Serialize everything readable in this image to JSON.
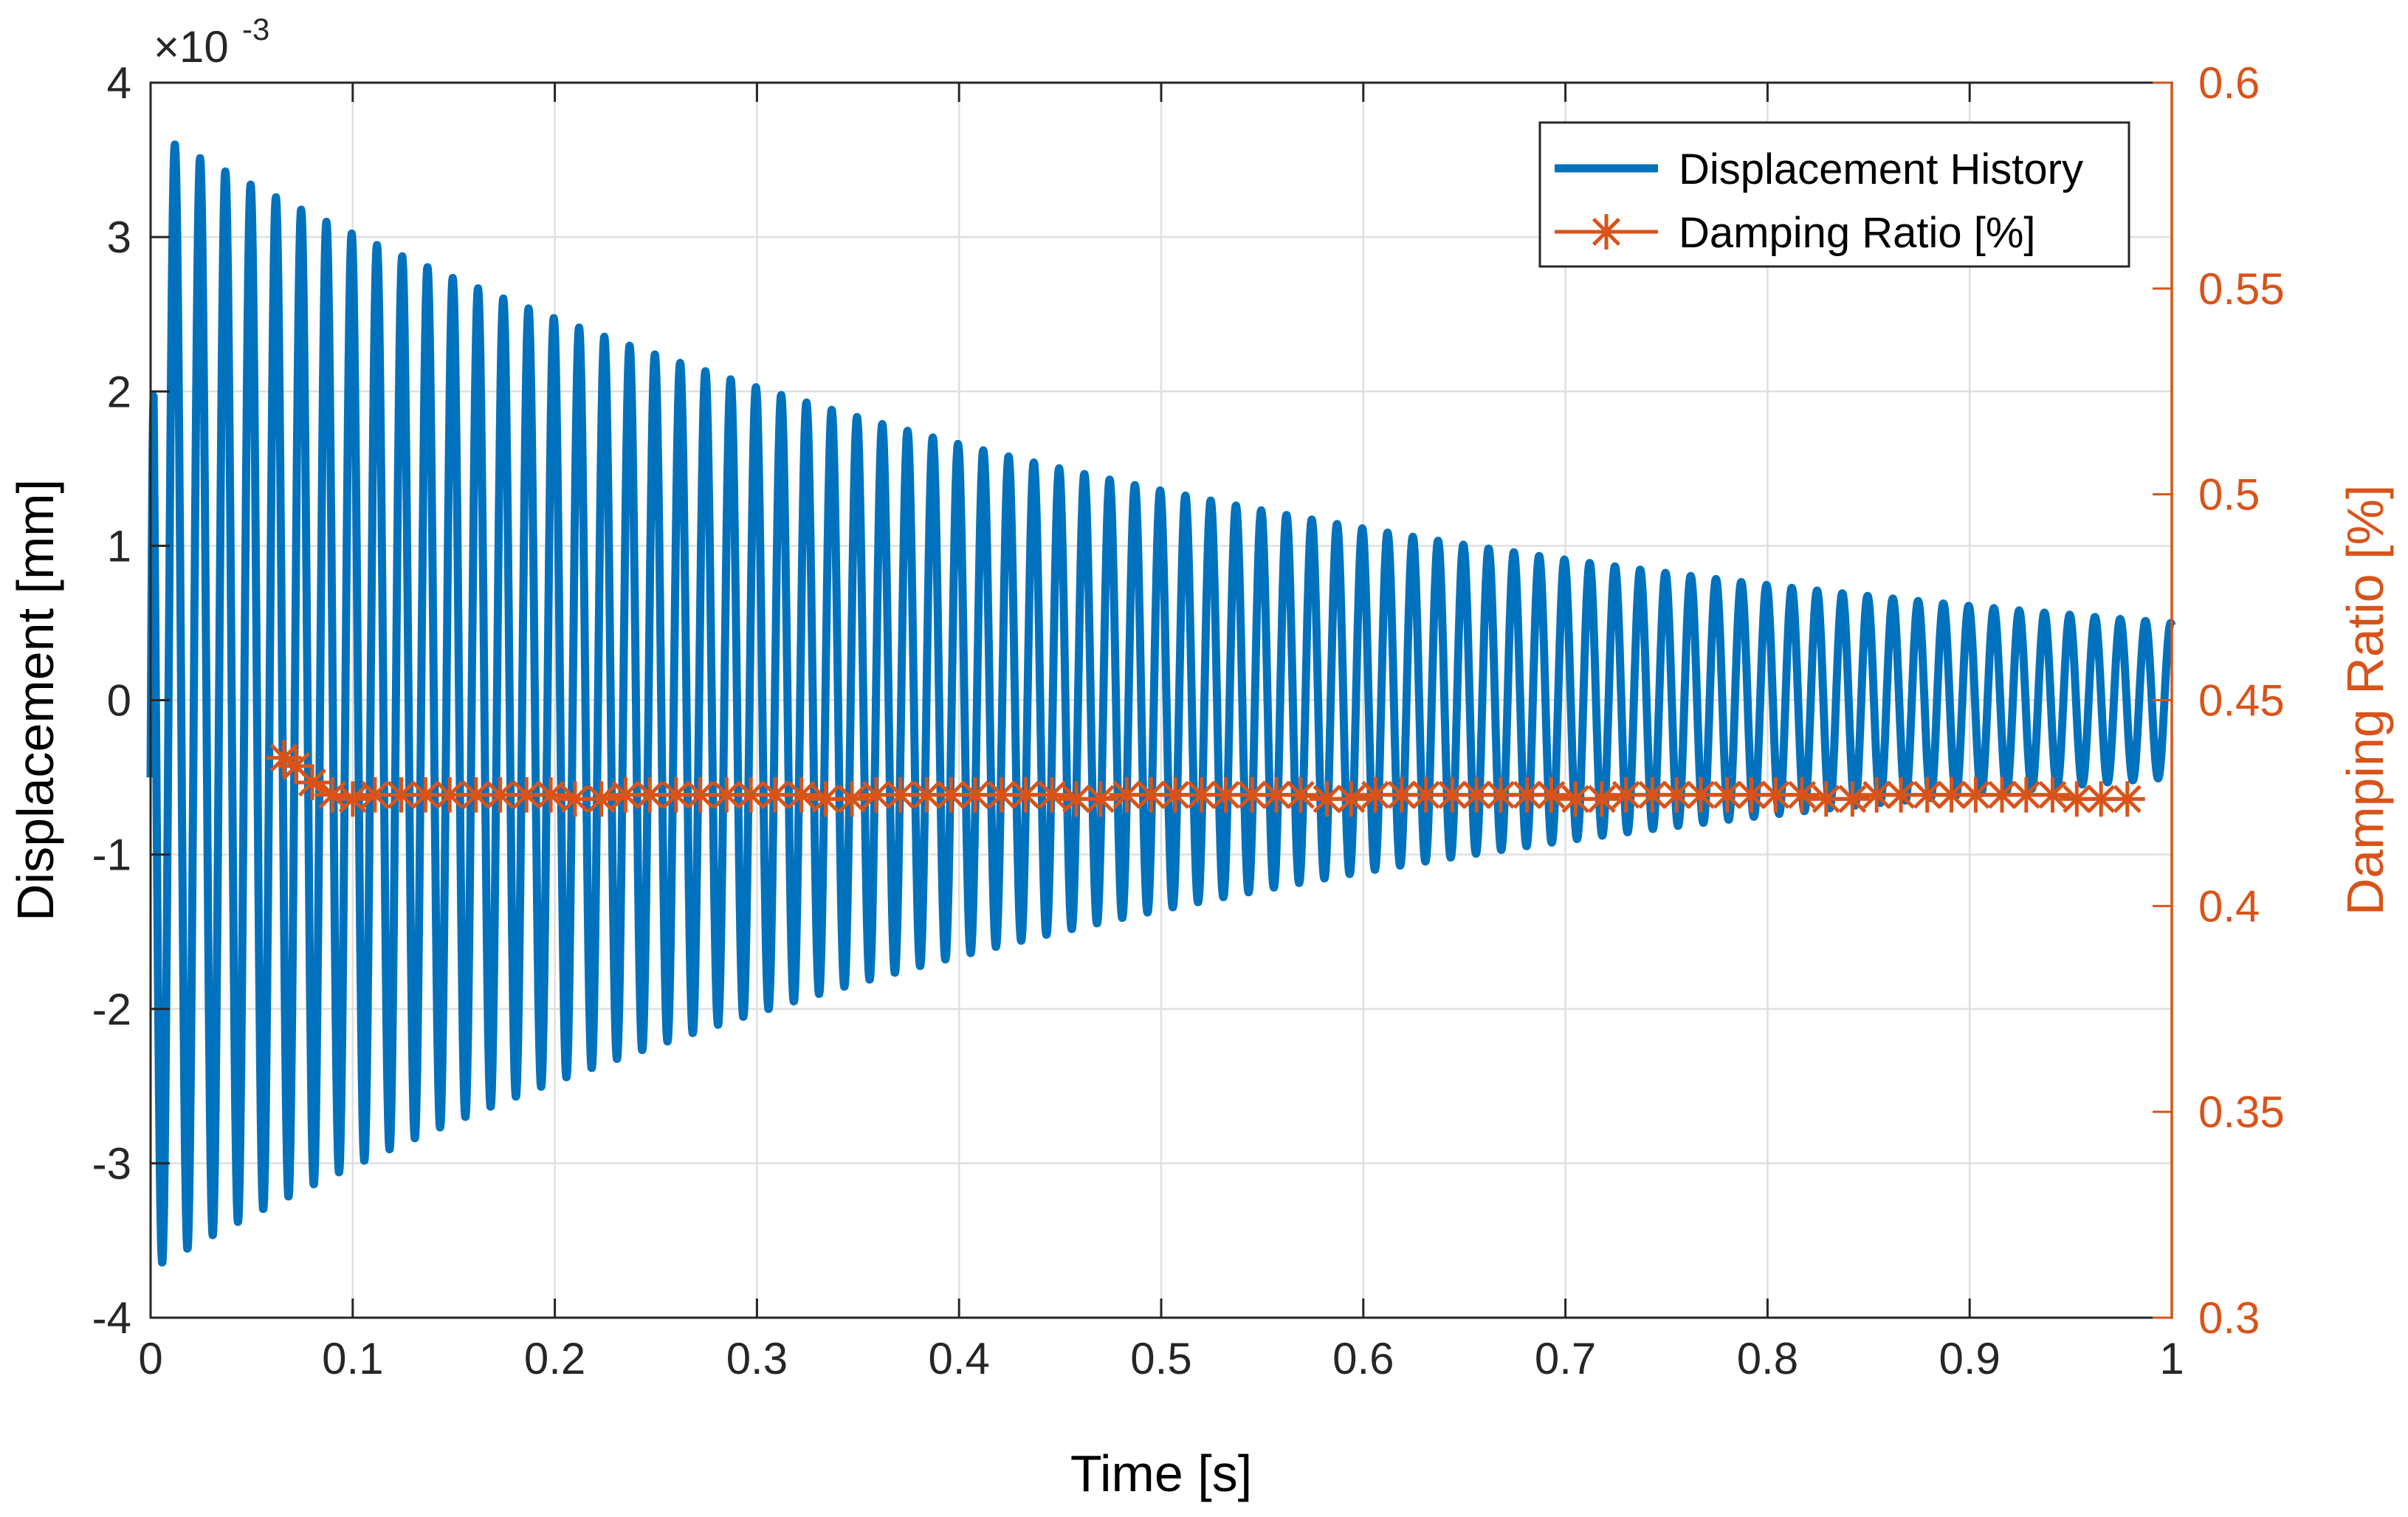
{
  "chart_data": {
    "type": "line",
    "xlabel": "Time [s]",
    "ylabel_left": "Displacement [mm]",
    "ylabel_right": "Damping Ratio [%]",
    "left_exponent_base": "×10",
    "left_exponent_power": "-3",
    "xlim": [
      0,
      1
    ],
    "ylim_left": [
      -4,
      4
    ],
    "ylim_right": [
      0.3,
      0.6
    ],
    "grid": true,
    "legend_position": "top-right",
    "x_ticks": [
      0,
      0.1,
      0.2,
      0.3,
      0.4,
      0.5,
      0.6,
      0.7,
      0.8,
      0.9,
      1
    ],
    "x_tick_labels": [
      "0",
      "0.1",
      "0.2",
      "0.3",
      "0.4",
      "0.5",
      "0.6",
      "0.7",
      "0.8",
      "0.9",
      "1"
    ],
    "y_left_ticks": [
      -4,
      -3,
      -2,
      -1,
      0,
      1,
      2,
      3,
      4
    ],
    "y_left_tick_labels": [
      "-4",
      "-3",
      "-2",
      "-1",
      "0",
      "1",
      "2",
      "3",
      "4"
    ],
    "y_right_ticks": [
      0.3,
      0.35,
      0.4,
      0.45,
      0.5,
      0.55,
      0.6
    ],
    "y_right_tick_labels": [
      "0.3",
      "0.35",
      "0.4",
      "0.45",
      "0.5",
      "0.55",
      "0.6"
    ],
    "series": [
      {
        "name": "Displacement History",
        "axis": "left",
        "color": "#0072BD",
        "kind": "damped_sine",
        "units_scale": 0.001,
        "peak_amplitude": 3.6,
        "initial_value": -0.5,
        "end_amplitude": 0.5,
        "frequency_hz": 80,
        "peak_time": 0.012
      },
      {
        "name": "Damping Ratio [%]",
        "axis": "right",
        "color": "#D95319",
        "marker": "asterisk",
        "x": [
          0.066,
          0.072,
          0.08,
          0.09,
          0.1,
          0.111,
          0.124,
          0.136,
          0.148,
          0.161,
          0.173,
          0.186,
          0.198,
          0.21,
          0.223,
          0.235,
          0.247,
          0.26,
          0.272,
          0.285,
          0.297,
          0.309,
          0.322,
          0.334,
          0.347,
          0.359,
          0.371,
          0.384,
          0.396,
          0.408,
          0.421,
          0.433,
          0.446,
          0.458,
          0.47,
          0.483,
          0.495,
          0.507,
          0.52,
          0.532,
          0.545,
          0.557,
          0.569,
          0.582,
          0.594,
          0.606,
          0.619,
          0.631,
          0.644,
          0.656,
          0.668,
          0.681,
          0.693,
          0.705,
          0.718,
          0.73,
          0.743,
          0.755,
          0.767,
          0.78,
          0.792,
          0.804,
          0.817,
          0.829,
          0.842,
          0.854,
          0.866,
          0.879,
          0.891,
          0.903,
          0.916,
          0.928,
          0.941,
          0.953,
          0.965,
          0.978
        ],
        "values": [
          0.436,
          0.434,
          0.43,
          0.427,
          0.426,
          0.427,
          0.427,
          0.427,
          0.427,
          0.427,
          0.427,
          0.427,
          0.427,
          0.426,
          0.426,
          0.427,
          0.427,
          0.427,
          0.427,
          0.427,
          0.427,
          0.427,
          0.427,
          0.426,
          0.426,
          0.427,
          0.427,
          0.427,
          0.427,
          0.427,
          0.427,
          0.427,
          0.427,
          0.426,
          0.426,
          0.427,
          0.427,
          0.427,
          0.427,
          0.427,
          0.427,
          0.427,
          0.427,
          0.426,
          0.426,
          0.427,
          0.427,
          0.427,
          0.427,
          0.427,
          0.427,
          0.427,
          0.427,
          0.426,
          0.426,
          0.427,
          0.427,
          0.427,
          0.427,
          0.427,
          0.427,
          0.427,
          0.427,
          0.426,
          0.426,
          0.427,
          0.427,
          0.427,
          0.427,
          0.427,
          0.427,
          0.427,
          0.427,
          0.426,
          0.426,
          0.426
        ]
      }
    ]
  }
}
